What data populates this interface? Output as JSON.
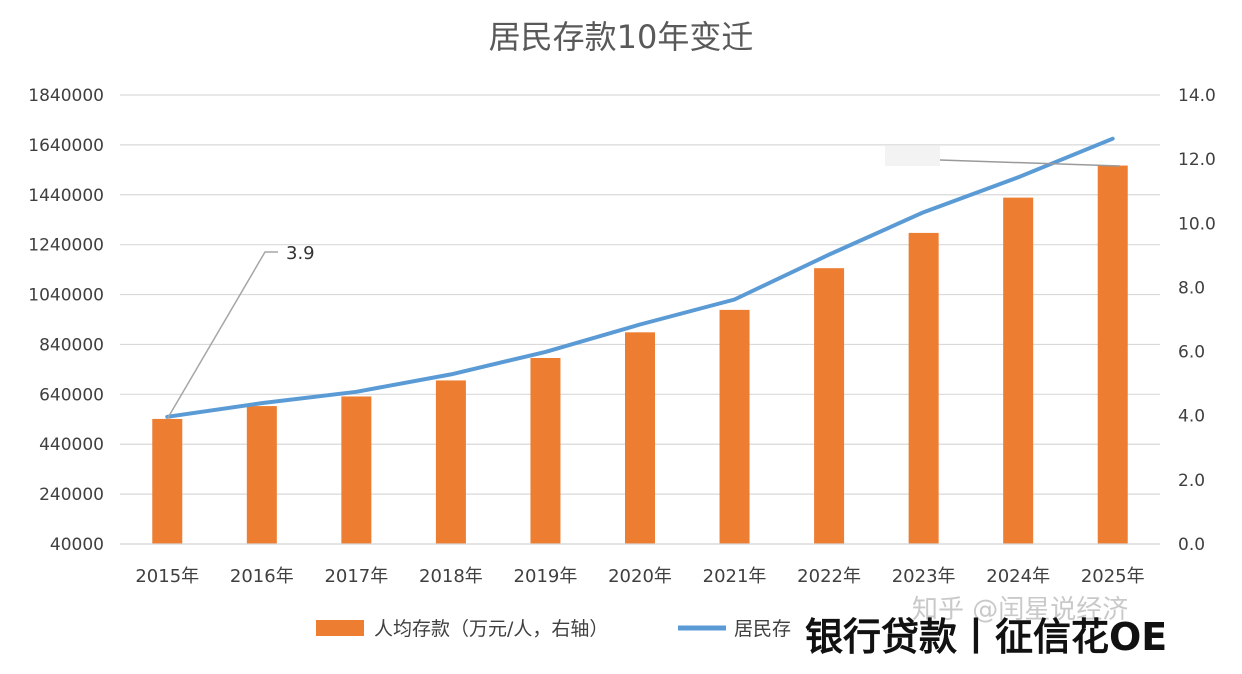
{
  "chart_data": {
    "type": "bar+line",
    "title": "居民存款10年变迁",
    "categories": [
      "2015年",
      "2016年",
      "2017年",
      "2018年",
      "2019年",
      "2020年",
      "2021年",
      "2022年",
      "2023年",
      "2024年",
      "2025年"
    ],
    "y_left": {
      "ylim": [
        40000,
        1840000
      ],
      "ticks": [
        40000,
        240000,
        440000,
        640000,
        840000,
        1040000,
        1240000,
        1440000,
        1640000,
        1840000
      ]
    },
    "y_right": {
      "ylim": [
        0,
        14
      ],
      "ticks": [
        "0.0",
        "2.0",
        "4.0",
        "6.0",
        "8.0",
        "10.0",
        "12.0",
        "14.0"
      ]
    },
    "series": [
      {
        "name": "人均存款（万元/人，右轴）",
        "kind": "bar",
        "axis": "right",
        "color": "#ed7d31",
        "values": [
          3.9,
          4.3,
          4.6,
          5.1,
          5.8,
          6.6,
          7.3,
          8.6,
          9.7,
          10.8,
          11.8
        ]
      },
      {
        "name": "居民存",
        "kind": "line",
        "axis": "left",
        "color": "#5b9bd5",
        "values": [
          550000,
          605000,
          650000,
          720000,
          810000,
          920000,
          1020000,
          1200000,
          1370000,
          1510000,
          1665000
        ]
      }
    ],
    "annotations": [
      {
        "text": "3.9",
        "category_index": 0
      }
    ],
    "grid": true,
    "legend": "bottom"
  },
  "watermark": {
    "faint": "知乎 @闰星说经济",
    "bold": "银行贷款丨征信花OE"
  }
}
